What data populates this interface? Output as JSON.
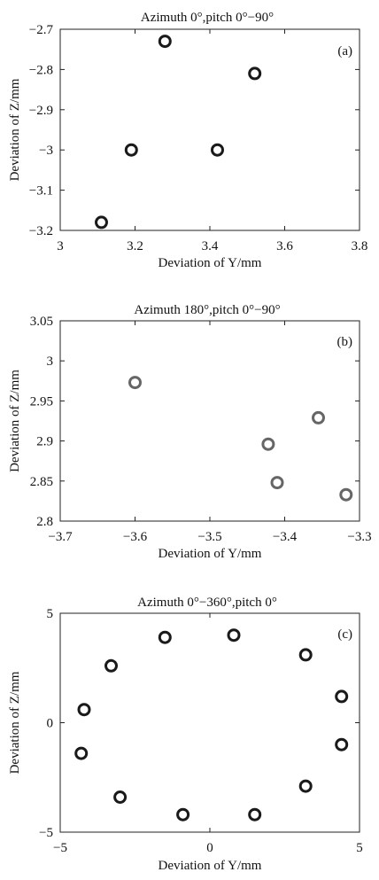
{
  "chart_data": [
    {
      "type": "scatter",
      "panel_label": "(a)",
      "title": "Azimuth 0°,pitch 0°−90°",
      "xlabel": "Deviation of Y/mm",
      "ylabel": "Deviation of Z/mm",
      "xlim": [
        3,
        3.8
      ],
      "ylim": [
        -3.2,
        -2.7
      ],
      "xticks": [
        "3",
        "3.2",
        "3.4",
        "3.6",
        "3.8"
      ],
      "yticks": [
        "−2.7",
        "−2.8",
        "−2.9",
        "−3",
        "−3.1",
        "−3.2"
      ],
      "marker_color": "#1a1a1a",
      "points": [
        {
          "x": 3.28,
          "y": -2.73
        },
        {
          "x": 3.52,
          "y": -2.81
        },
        {
          "x": 3.19,
          "y": -3.0
        },
        {
          "x": 3.42,
          "y": -3.0
        },
        {
          "x": 3.11,
          "y": -3.18
        }
      ]
    },
    {
      "type": "scatter",
      "panel_label": "(b)",
      "title": "Azimuth 180°,pitch 0°−90°",
      "xlabel": "Deviation of Y/mm",
      "ylabel": "Deviation of Z/mm",
      "xlim": [
        -3.7,
        -3.3
      ],
      "ylim": [
        2.8,
        3.05
      ],
      "xticks": [
        "−3.7",
        "−3.6",
        "−3.5",
        "−3.4",
        "−3.3"
      ],
      "yticks": [
        "3.05",
        "3",
        "2.95",
        "2.9",
        "2.85",
        "2.8"
      ],
      "marker_color": "#666666",
      "points": [
        {
          "x": -3.6,
          "y": 2.973
        },
        {
          "x": -3.355,
          "y": 2.929
        },
        {
          "x": -3.422,
          "y": 2.896
        },
        {
          "x": -3.41,
          "y": 2.848
        },
        {
          "x": -3.318,
          "y": 2.833
        }
      ]
    },
    {
      "type": "scatter",
      "panel_label": "(c)",
      "title": "Azimuth 0°−360°,pitch 0°",
      "xlabel": "Deviation of Y/mm",
      "ylabel": "Deviation of Z/mm",
      "xlim": [
        -5,
        5
      ],
      "ylim": [
        -5,
        5
      ],
      "xticks": [
        "−5",
        "0",
        "5"
      ],
      "yticks": [
        "5",
        "0",
        "−5"
      ],
      "marker_color": "#1a1a1a",
      "points": [
        {
          "x": -1.5,
          "y": 3.9
        },
        {
          "x": 0.8,
          "y": 4.0
        },
        {
          "x": 3.2,
          "y": 3.1
        },
        {
          "x": 4.4,
          "y": 1.2
        },
        {
          "x": 4.4,
          "y": -1.0
        },
        {
          "x": 3.2,
          "y": -2.9
        },
        {
          "x": 1.5,
          "y": -4.2
        },
        {
          "x": -0.9,
          "y": -4.2
        },
        {
          "x": -3.0,
          "y": -3.4
        },
        {
          "x": -4.3,
          "y": -1.4
        },
        {
          "x": -4.2,
          "y": 0.6
        },
        {
          "x": -3.3,
          "y": 2.6
        }
      ]
    }
  ]
}
